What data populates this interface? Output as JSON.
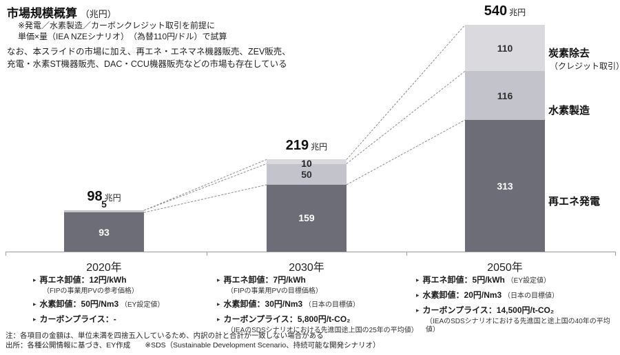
{
  "header": {
    "title": "市場規模概算",
    "title_unit": "（兆円）",
    "note_line1": "※発電／水素製造／カーボンクレジット取引を前提に",
    "note_line2": "単価×量（IEA NZEシナリオ）　（為替110円/ドル）で試算",
    "para_line1": "なお、本スライドの市場に加え、再エネ・エネマネ機器販売、ZEV販売、",
    "para_line2": "充電・水素ST機器販売、DAC・CCU機器販売などの市場も存在している"
  },
  "chart_data": {
    "type": "bar",
    "stacked": true,
    "unit": "兆円",
    "categories": [
      "2020年",
      "2030年",
      "2050年"
    ],
    "series": [
      {
        "name": "再エネ発電",
        "color": "#6d6d78",
        "values": [
          93,
          159,
          313
        ]
      },
      {
        "name": "水素製造",
        "color": "#c3c3cb",
        "values": [
          5,
          50,
          116
        ]
      },
      {
        "name": "炭素除去（クレジット取引）",
        "color": "#dadade",
        "values": [
          0,
          10,
          110
        ]
      }
    ],
    "totals": [
      98,
      219,
      540
    ],
    "connector_style": "dashed",
    "legend_position": "right",
    "series_labels_right": {
      "carbon": "炭素除去",
      "carbon_sub": "（クレジット取引）",
      "hydrogen": "水素製造",
      "renewable": "再エネ発電"
    }
  },
  "assumptions": [
    {
      "year": "2020年",
      "items": [
        {
          "text": "再エネ卸値：12円/kWh",
          "suffix": "",
          "sub": "（FIPの事業用PVの参考価格）"
        },
        {
          "text": "水素卸値：50円/Nm3",
          "suffix": "（EY設定値）",
          "sub": ""
        },
        {
          "text": "カーボンプライス：-",
          "suffix": "",
          "sub": ""
        }
      ]
    },
    {
      "year": "2030年",
      "items": [
        {
          "text": "再エネ卸値：7円/kWh",
          "suffix": "",
          "sub": "（FIPの事業用PVの目標価格）"
        },
        {
          "text": "水素卸値：30円/Nm3",
          "suffix": "（日本の目標値）",
          "sub": ""
        },
        {
          "text": "カーボンプライス：5,800円/t-CO₂",
          "suffix": "",
          "sub": "（IEAのSDSシナリオにおける先進国途上国の25年の平均値）"
        }
      ]
    },
    {
      "year": "2050年",
      "items": [
        {
          "text": "再エネ卸値：5円/kWh",
          "suffix": "（EY設定値）",
          "sub": ""
        },
        {
          "text": "水素卸値：20円/Nm3",
          "suffix": "（日本の目標値）",
          "sub": ""
        },
        {
          "text": "カーボンプライス：14,500円/t-CO₂",
          "suffix": "",
          "sub": "（IEAのSDSシナリオにおける先進国と途上国の40年の平均値）"
        }
      ]
    }
  ],
  "footer": {
    "note": "注：各項目の金額は、単位未満を四捨五入しているため、内訳の計と合計が一致しない場合がある",
    "source": "出所：各種公開情報に基づき、EY作成　　※SDS（Sustainable Development Scenario、持続可能な開発シナリオ）"
  }
}
